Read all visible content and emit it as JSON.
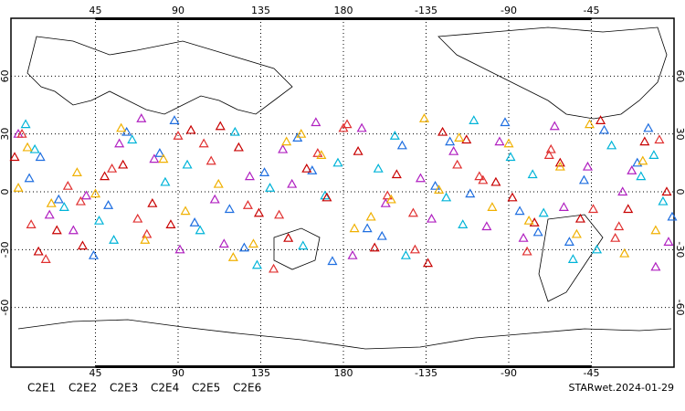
{
  "chart_data": {
    "type": "scatter",
    "title": "STARwet.2024-01-29",
    "xlim": [
      0,
      360
    ],
    "ylim": [
      -90,
      90
    ],
    "grid": true,
    "marker": "triangle",
    "xticks": [
      45,
      90,
      135,
      180,
      {
        "value": 225,
        "label": "-135"
      },
      {
        "value": 270,
        "label": "-90"
      },
      {
        "value": 315,
        "label": "-45"
      }
    ],
    "yticks": [
      -60,
      -30,
      0,
      30,
      60
    ],
    "series": [
      {
        "name": "C2E1",
        "color": "#00b4d8",
        "x": [
          12,
          47,
          83,
          121,
          158,
          199,
          236,
          271,
          305,
          342,
          28,
          65,
          102,
          140,
          177,
          214,
          251,
          289,
          326,
          354,
          7,
          55,
          95,
          133,
          170,
          208,
          245,
          283,
          318,
          349
        ],
        "y": [
          22,
          -15,
          5,
          31,
          -28,
          12,
          -3,
          18,
          -35,
          8,
          -8,
          27,
          -20,
          2,
          15,
          -33,
          37,
          -11,
          24,
          -5,
          35,
          -25,
          14,
          -38,
          -2,
          29,
          -17,
          9,
          -30,
          19
        ]
      },
      {
        "name": "C2E2",
        "color": "#b020c0",
        "x": [
          20,
          58,
          91,
          129,
          165,
          203,
          240,
          278,
          313,
          350,
          3,
          40,
          77,
          115,
          152,
          190,
          228,
          265,
          300,
          337,
          33,
          70,
          110,
          147,
          185,
          222,
          258,
          295,
          332,
          357
        ],
        "y": [
          -12,
          25,
          -30,
          8,
          36,
          -6,
          21,
          -24,
          13,
          -39,
          30,
          -2,
          17,
          -27,
          4,
          33,
          -14,
          26,
          -8,
          11,
          -20,
          38,
          -4,
          22,
          -33,
          7,
          -18,
          34,
          0,
          -26
        ]
      },
      {
        "name": "C2E3",
        "color": "#1e6ee0",
        "x": [
          9,
          44,
          80,
          118,
          155,
          193,
          230,
          268,
          303,
          340,
          25,
          62,
          99,
          137,
          174,
          212,
          249,
          286,
          322,
          359,
          15,
          52,
          88,
          126,
          163,
          201,
          238,
          276,
          311,
          346
        ],
        "y": [
          7,
          -33,
          20,
          -9,
          28,
          -19,
          3,
          36,
          -26,
          15,
          -4,
          31,
          -16,
          10,
          -36,
          24,
          -1,
          -21,
          32,
          -13,
          18,
          -7,
          37,
          -29,
          11,
          -23,
          26,
          -10,
          6,
          33
        ]
      },
      {
        "name": "C2E4",
        "color": "#e03030",
        "x": [
          5,
          37,
          73,
          108,
          145,
          182,
          219,
          256,
          293,
          330,
          18,
          54,
          90,
          128,
          166,
          204,
          242,
          280,
          316,
          352,
          30,
          68,
          104,
          142,
          180,
          218,
          254,
          292,
          328,
          10
        ],
        "y": [
          30,
          -5,
          -22,
          16,
          -12,
          35,
          -30,
          6,
          22,
          -18,
          -35,
          12,
          29,
          -7,
          20,
          -2,
          14,
          -31,
          -9,
          27,
          3,
          -14,
          25,
          -40,
          33,
          -11,
          8,
          19,
          -24,
          -17
        ]
      },
      {
        "name": "C2E5",
        "color": "#c80000",
        "x": [
          24,
          60,
          97,
          134,
          171,
          209,
          247,
          284,
          320,
          356,
          1,
          38,
          76,
          113,
          150,
          188,
          226,
          263,
          298,
          335,
          14,
          50,
          86,
          123,
          160,
          197,
          234,
          272,
          309,
          344
        ],
        "y": [
          -20,
          14,
          32,
          -11,
          -3,
          9,
          27,
          -16,
          37,
          0,
          18,
          -28,
          -6,
          34,
          -24,
          21,
          -37,
          5,
          15,
          -9,
          -31,
          8,
          -17,
          23,
          12,
          -29,
          31,
          -3,
          -14,
          26
        ]
      },
      {
        "name": "C2E6",
        "color": "#f0b000",
        "x": [
          35,
          72,
          112,
          149,
          186,
          224,
          261,
          298,
          333,
          8,
          45,
          82,
          120,
          157,
          195,
          232,
          270,
          307,
          343,
          21,
          59,
          94,
          131,
          168,
          206,
          243,
          281,
          314,
          350,
          3
        ],
        "y": [
          10,
          -25,
          4,
          26,
          -19,
          38,
          -8,
          13,
          -32,
          23,
          -1,
          17,
          -34,
          30,
          -13,
          1,
          25,
          -22,
          16,
          -6,
          33,
          -10,
          -27,
          19,
          -4,
          28,
          -15,
          35,
          -20,
          2
        ]
      }
    ]
  }
}
